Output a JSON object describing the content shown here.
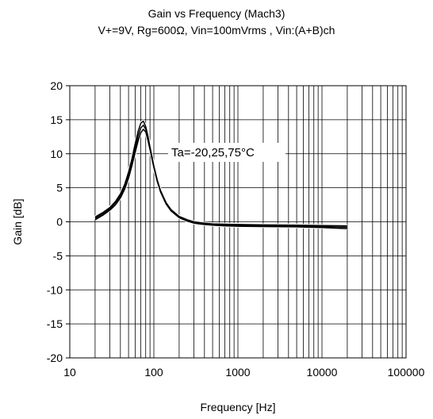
{
  "chart_data": {
    "type": "line",
    "title": "Gain vs Frequency (Mach3)",
    "subtitle": "V+=9V, Rg=600Ω, Vin=100mVrms , Vin:(A+B)ch",
    "xlabel": "Frequency [Hz]",
    "ylabel": "Gain [dB]",
    "x_scale": "log",
    "xlim": [
      10,
      100000
    ],
    "ylim": [
      -20,
      20
    ],
    "x_ticks": [
      "10",
      "100",
      "1000",
      "10000",
      "100000"
    ],
    "y_ticks": [
      "20",
      "15",
      "10",
      "5",
      "0",
      "-5",
      "-10",
      "-15",
      "-20"
    ],
    "grid": true,
    "annotation": "Ta=-20,25,75°C",
    "series": [
      {
        "x": [
          20,
          25,
          30,
          35,
          40,
          45,
          50,
          55,
          60,
          65,
          70,
          75,
          80,
          85,
          90,
          100,
          110,
          120,
          140,
          160,
          200,
          250,
          300,
          400,
          500,
          700,
          1000,
          2000,
          5000,
          10000,
          20000
        ],
        "values": [
          0.7,
          1.4,
          2.1,
          3.0,
          4.1,
          5.5,
          7.3,
          9.3,
          11.5,
          13.3,
          14.5,
          14.8,
          14.0,
          12.6,
          11.0,
          8.2,
          6.1,
          4.6,
          2.8,
          1.8,
          0.8,
          0.3,
          0.0,
          -0.2,
          -0.3,
          -0.35,
          -0.4,
          -0.45,
          -0.5,
          -0.55,
          -0.6
        ]
      },
      {
        "x": [
          20,
          25,
          30,
          35,
          40,
          45,
          50,
          55,
          60,
          65,
          70,
          75,
          80,
          85,
          90,
          100,
          110,
          120,
          140,
          160,
          200,
          250,
          300,
          400,
          500,
          700,
          1000,
          2000,
          5000,
          10000,
          20000
        ],
        "values": [
          0.5,
          1.2,
          1.9,
          2.8,
          3.8,
          5.2,
          6.9,
          8.8,
          10.8,
          12.6,
          13.8,
          14.2,
          13.6,
          12.3,
          10.8,
          8.1,
          6.0,
          4.5,
          2.7,
          1.7,
          0.7,
          0.2,
          -0.1,
          -0.3,
          -0.4,
          -0.45,
          -0.5,
          -0.55,
          -0.6,
          -0.7,
          -0.8
        ]
      },
      {
        "x": [
          20,
          25,
          30,
          35,
          40,
          45,
          50,
          55,
          60,
          65,
          70,
          75,
          80,
          85,
          90,
          100,
          110,
          120,
          140,
          160,
          200,
          250,
          300,
          400,
          500,
          700,
          1000,
          2000,
          5000,
          10000,
          20000
        ],
        "values": [
          0.3,
          1.0,
          1.7,
          2.5,
          3.5,
          4.8,
          6.4,
          8.3,
          10.2,
          11.9,
          13.1,
          13.6,
          13.2,
          12.0,
          10.6,
          8.0,
          5.9,
          4.4,
          2.6,
          1.6,
          0.6,
          0.1,
          -0.2,
          -0.4,
          -0.5,
          -0.6,
          -0.65,
          -0.7,
          -0.75,
          -0.85,
          -1.0
        ]
      }
    ]
  }
}
